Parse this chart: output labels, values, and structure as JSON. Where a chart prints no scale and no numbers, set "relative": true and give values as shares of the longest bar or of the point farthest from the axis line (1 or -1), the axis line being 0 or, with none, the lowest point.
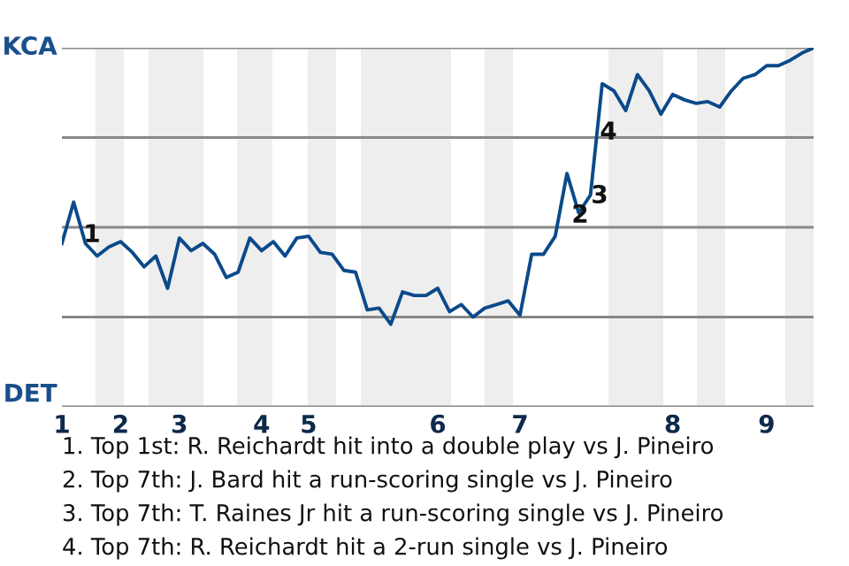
{
  "chart_data": {
    "type": "line",
    "relative": true,
    "categories": [
      "1",
      null,
      null,
      null,
      null,
      "2",
      null,
      null,
      null,
      null,
      "3",
      null,
      null,
      null,
      null,
      null,
      null,
      "4",
      null,
      null,
      null,
      "5",
      null,
      null,
      null,
      null,
      null,
      null,
      null,
      null,
      null,
      null,
      "6",
      null,
      null,
      null,
      null,
      null,
      null,
      "7",
      null,
      null,
      null,
      null,
      null,
      null,
      null,
      null,
      null,
      null,
      null,
      null,
      "8",
      null,
      null,
      null,
      null,
      null,
      null,
      null,
      "9",
      null,
      null,
      null,
      null
    ],
    "series": [
      {
        "color": "#0b4a8a",
        "values": [
          0.455,
          0.57,
          0.455,
          0.42,
          0.445,
          0.46,
          0.43,
          0.39,
          0.42,
          0.33,
          0.47,
          0.435,
          0.455,
          0.425,
          0.36,
          0.375,
          0.47,
          0.435,
          0.46,
          0.42,
          0.47,
          0.475,
          0.43,
          0.425,
          0.38,
          0.375,
          0.27,
          0.275,
          0.23,
          0.32,
          0.31,
          0.31,
          0.33,
          0.265,
          0.285,
          0.25,
          0.275,
          0.285,
          0.295,
          0.255,
          0.425,
          0.425,
          0.475,
          0.65,
          0.54,
          0.59,
          0.9,
          0.88,
          0.825,
          0.925,
          0.88,
          0.815,
          0.87,
          0.855,
          0.845,
          0.85,
          0.835,
          0.88,
          0.915,
          0.925,
          0.95,
          0.95,
          0.965,
          0.985,
          1.0
        ]
      }
    ],
    "marker": "none",
    "line_style": "solid",
    "legend": false,
    "ref_lines": [
      {
        "axis": "y",
        "value": 1,
        "label": "KCA",
        "color": "#888888"
      },
      {
        "axis": "y",
        "value": 0.75,
        "color": "#888888"
      },
      {
        "axis": "y",
        "value": 0.5,
        "color": "#888888"
      },
      {
        "axis": "y",
        "value": 0.25,
        "color": "#888888"
      },
      {
        "axis": "y",
        "value": 0,
        "label": "DET",
        "color": "#888888"
      }
    ],
    "annotations": [
      "1",
      "2",
      "3",
      "4",
      "1. Top 1st: R. Reichardt hit into a double play vs J. Pineiro",
      "2. Top 7th: J. Bard hit a run-scoring single vs J. Pineiro",
      "3. Top 7th: T. Raines Jr hit a run-scoring single vs J. Pineiro",
      "4. Top 7th: R. Reichardt hit a 2-run single vs J. Pineiro"
    ]
  }
}
